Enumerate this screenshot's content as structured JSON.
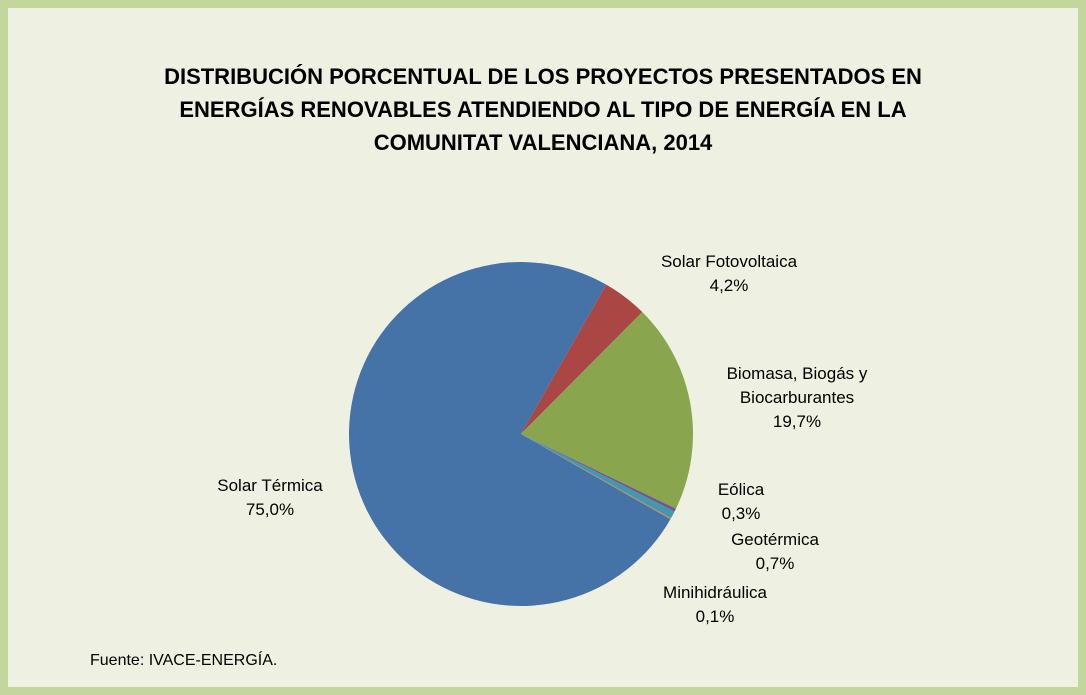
{
  "chart_data": {
    "type": "pie",
    "title": "DISTRIBUCIÓN PORCENTUAL DE LOS PROYECTOS PRESENTADOS EN ENERGÍAS RENOVABLES ATENDIENDO AL TIPO DE ENERGÍA EN LA COMUNITAT VALENCIANA, 2014",
    "categories": [
      "Solar Fotovoltaica",
      "Biomasa, Biogás y Biocarburantes",
      "Eólica",
      "Geotérmica",
      "Minihidráulica",
      "Solar Térmica"
    ],
    "values": [
      4.2,
      19.7,
      0.3,
      0.7,
      0.1,
      75.0
    ],
    "value_labels": [
      "4,2%",
      "19,7%",
      "0,3%",
      "0,7%",
      "0,1%",
      "75,0%"
    ],
    "colors": [
      "#aa4643",
      "#89a54e",
      "#71588f",
      "#4198af",
      "#db843d",
      "#4572a7"
    ],
    "source": "Fuente: IVACE-ENERGÍA."
  }
}
